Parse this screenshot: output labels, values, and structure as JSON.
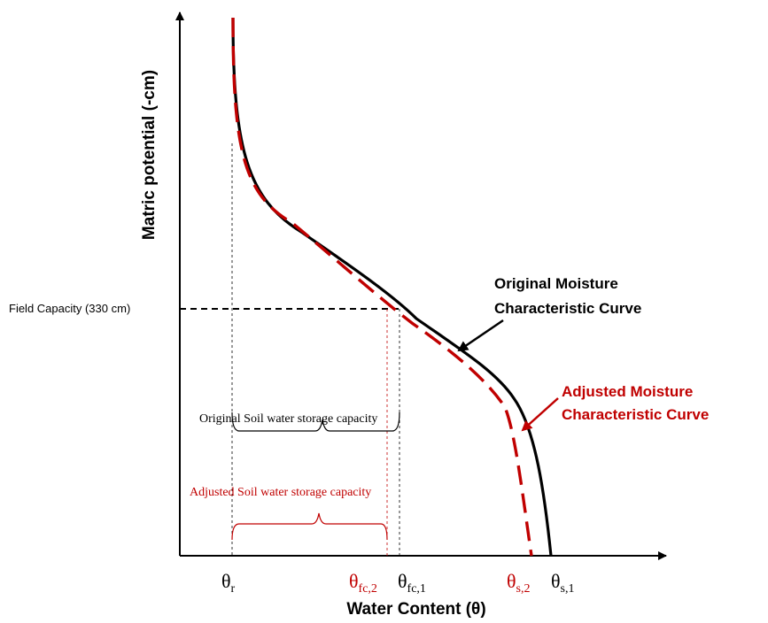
{
  "axes": {
    "x_label": "Water Content (θ)",
    "y_label": "Matric potential (-cm)"
  },
  "field_capacity_label": "Field Capacity (330 cm)",
  "theta_labels": {
    "r": {
      "symbol": "θ",
      "sub": "r"
    },
    "fc2": {
      "symbol": "θ",
      "sub": "fc,2"
    },
    "fc1": {
      "symbol": "θ",
      "sub": "fc,1"
    },
    "s2": {
      "symbol": "θ",
      "sub": "s,2"
    },
    "s1": {
      "symbol": "θ",
      "sub": "s,1"
    }
  },
  "curves": {
    "original": {
      "line1": "Original Moisture",
      "line2": "Characteristic Curve",
      "color": "#000000"
    },
    "adjusted": {
      "line1": "Adjusted Moisture",
      "line2": "Characteristic Curve",
      "color": "#c00000"
    }
  },
  "storage": {
    "original": {
      "label": "Original Soil water storage capacity",
      "color": "#000000"
    },
    "adjusted": {
      "label": "Adjusted Soil water storage capacity",
      "color": "#c00000"
    }
  }
}
